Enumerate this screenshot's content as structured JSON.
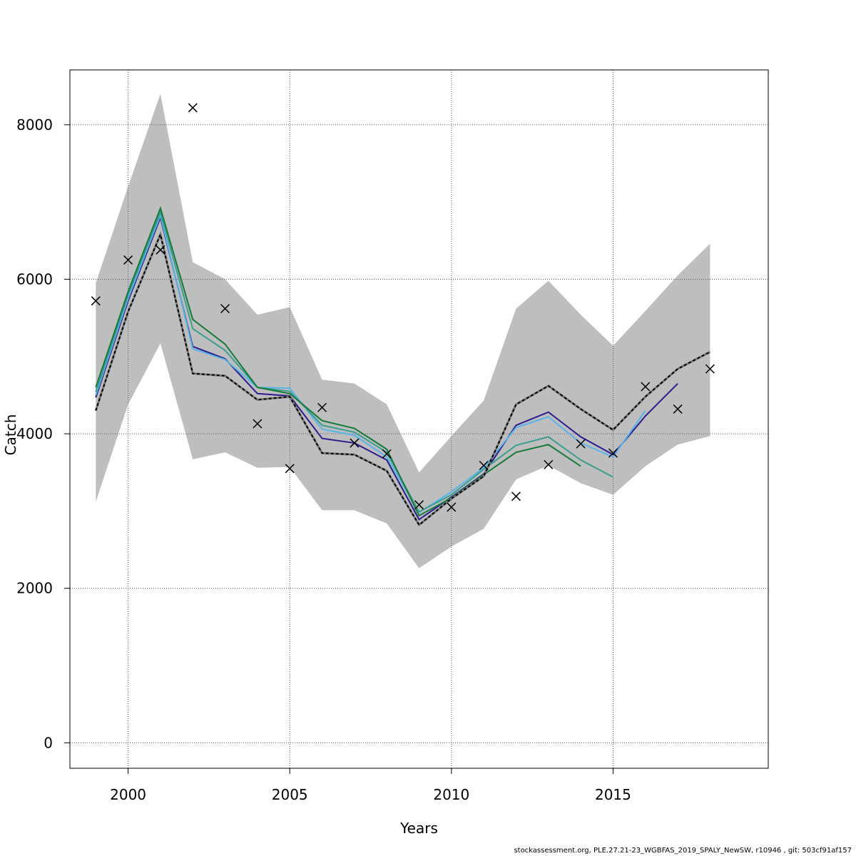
{
  "footer_text": "stockassessment.org, PLE.27.21-23_WGBFAS_2019_SPALY_NewSW, r10946 , git: 503cf91af157",
  "chart_data": {
    "type": "line",
    "title": "",
    "xlabel": "Years",
    "ylabel": "Catch",
    "xlim": [
      1998.2,
      2019.8
    ],
    "ylim": [
      -330,
      8710
    ],
    "x_ticks": [
      2000,
      2005,
      2010,
      2015
    ],
    "y_ticks": [
      0,
      2000,
      4000,
      6000,
      8000
    ],
    "grid": true,
    "confidence_band": {
      "color": "#bebebe",
      "x": [
        1999,
        2000,
        2001,
        2002,
        2003,
        2004,
        2005,
        2006,
        2007,
        2008,
        2009,
        2010,
        2011,
        2012,
        2013,
        2014,
        2015,
        2016,
        2017,
        2018
      ],
      "upper": [
        5950,
        7200,
        8400,
        6220,
        6000,
        5540,
        5640,
        4700,
        4650,
        4380,
        3500,
        3970,
        4430,
        5620,
        5980,
        5540,
        5140,
        5590,
        6050,
        6460
      ],
      "lower": [
        3120,
        4380,
        5170,
        3670,
        3760,
        3560,
        3570,
        3010,
        3010,
        2840,
        2260,
        2540,
        2770,
        3410,
        3590,
        3360,
        3210,
        3580,
        3860,
        3970
      ]
    },
    "series": [
      {
        "color": "#000000",
        "style": "dashed-on-grey",
        "x": [
          1999,
          2000,
          2001,
          2002,
          2003,
          2004,
          2005,
          2006,
          2007,
          2008,
          2009,
          2010,
          2011,
          2012,
          2013,
          2014,
          2015,
          2016,
          2017,
          2018
        ],
        "values": [
          4300,
          5580,
          6580,
          4780,
          4750,
          4440,
          4480,
          3750,
          3730,
          3520,
          2820,
          3160,
          3450,
          4380,
          4620,
          4320,
          4050,
          4480,
          4840,
          5060
        ]
      },
      {
        "color": "#2b1d8f",
        "style": "solid",
        "x": [
          1999,
          2000,
          2001,
          2002,
          2003,
          2004,
          2005,
          2006,
          2007,
          2008,
          2009,
          2010,
          2011,
          2012,
          2013,
          2014,
          2015,
          2016,
          2017
        ],
        "values": [
          4470,
          5720,
          6800,
          5130,
          4970,
          4520,
          4490,
          3940,
          3880,
          3660,
          2890,
          3180,
          3480,
          4110,
          4280,
          3960,
          3730,
          4230,
          4650
        ]
      },
      {
        "color": "#56b4e9",
        "style": "solid",
        "x": [
          1999,
          2000,
          2001,
          2002,
          2003,
          2004,
          2005,
          2006,
          2007,
          2008,
          2009,
          2010,
          2011,
          2012,
          2013,
          2014,
          2015,
          2016
        ],
        "values": [
          4500,
          5750,
          6830,
          5100,
          4960,
          4600,
          4590,
          4060,
          3980,
          3700,
          2980,
          3250,
          3560,
          4080,
          4220,
          3880,
          3700,
          4300
        ]
      },
      {
        "color": "#3a9e8f",
        "style": "solid",
        "x": [
          1999,
          2000,
          2001,
          2002,
          2003,
          2004,
          2005,
          2006,
          2007,
          2008,
          2009,
          2010,
          2011,
          2012,
          2013,
          2014,
          2015
        ],
        "values": [
          4540,
          5800,
          6870,
          5360,
          5080,
          4600,
          4550,
          4110,
          4020,
          3760,
          2990,
          3210,
          3540,
          3850,
          3960,
          3660,
          3440
        ]
      },
      {
        "color": "#137a3a",
        "style": "solid",
        "x": [
          1999,
          2000,
          2001,
          2002,
          2003,
          2004,
          2005,
          2006,
          2007,
          2008,
          2009,
          2010,
          2011,
          2012,
          2013,
          2014
        ],
        "values": [
          4600,
          5840,
          6920,
          5480,
          5160,
          4600,
          4520,
          4170,
          4070,
          3800,
          2940,
          3170,
          3470,
          3760,
          3860,
          3580
        ]
      }
    ],
    "observations": {
      "marker": "x",
      "color": "#000000",
      "x": [
        1999,
        2000,
        2001,
        2002,
        2003,
        2004,
        2005,
        2006,
        2007,
        2008,
        2009,
        2010,
        2011,
        2012,
        2013,
        2014,
        2015,
        2016,
        2017,
        2018
      ],
      "values": [
        5720,
        6250,
        6380,
        8220,
        5620,
        4130,
        3550,
        4340,
        3880,
        3740,
        3080,
        3050,
        3590,
        3190,
        3600,
        3870,
        3750,
        4610,
        4320,
        4840
      ]
    }
  }
}
